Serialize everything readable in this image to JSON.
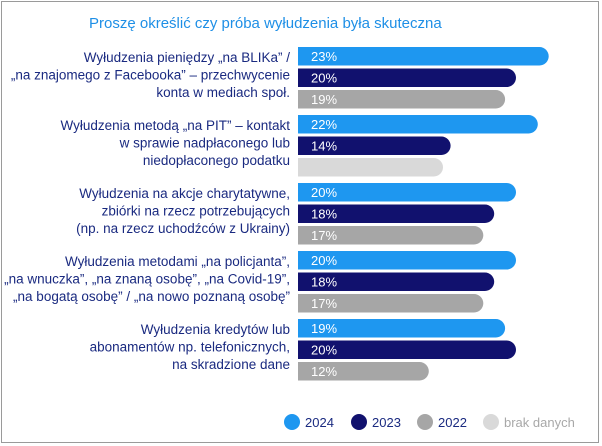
{
  "title": "Proszę określić czy próba wyłudzenia była skuteczna",
  "chart_data": {
    "type": "bar",
    "orientation": "horizontal",
    "title": "Proszę określić czy próba wyłudzenia była skuteczna",
    "value_suffix": "%",
    "categories": [
      [
        "Wyłudzenia pieniędzy  „na BLIKa” /",
        "„na znajomego z Facebooka” – przechwycenie",
        "konta w mediach społ."
      ],
      [
        "Wyłudzenia metodą „na PIT” – kontakt",
        "w sprawie nadpłaconego lub",
        "niedopłaconego podatku"
      ],
      [
        "Wyłudzenia na akcje charytatywne,",
        "zbiórki na rzecz potrzebujących",
        "(np. na rzecz uchodźców z Ukrainy)"
      ],
      [
        "Wyłudzenia metodami „na policjanta”,",
        "„na wnuczka”, „na znaną osobę”, „na Covid-19”,",
        "„na bogatą osobę” / „na nowo poznaną osobę”"
      ],
      [
        "Wyłudzenia kredytów lub",
        "abonamentów np. telefonicznych,",
        "na skradzione dane"
      ]
    ],
    "series": [
      {
        "name": "2024",
        "color": "#1e97f0",
        "values": [
          23,
          22,
          20,
          20,
          19
        ]
      },
      {
        "name": "2023",
        "color": "#11116e",
        "values": [
          20,
          14,
          18,
          18,
          20
        ]
      },
      {
        "name": "2022",
        "color": "#a6a6a6",
        "values": [
          19,
          null,
          17,
          17,
          12
        ]
      }
    ],
    "no_data": {
      "label": "brak danych",
      "color": "#d9d9d9"
    },
    "legend_position": "bottom-right",
    "grid": false
  }
}
